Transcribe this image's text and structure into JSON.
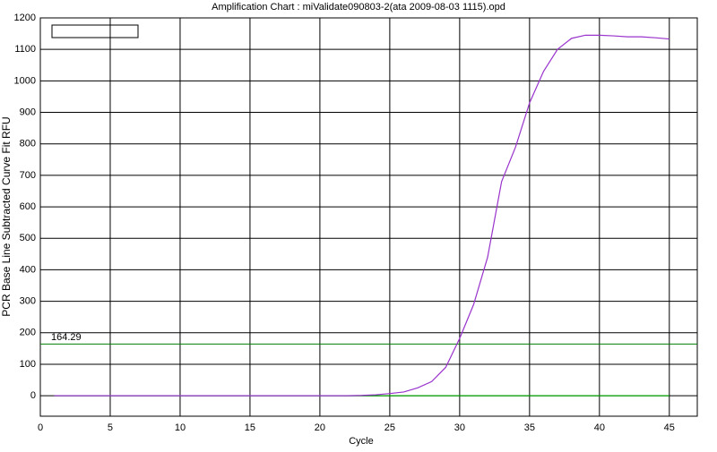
{
  "chart_data": {
    "type": "line",
    "title": "Amplification Chart : miValidate090803-2(ata 2009-08-03 1115).opd",
    "x_label": "Cycle",
    "y_label": "PCR Base Line Subtracted Curve Fit RFU",
    "x": [
      1,
      2,
      3,
      4,
      5,
      6,
      7,
      8,
      9,
      10,
      11,
      12,
      13,
      14,
      15,
      16,
      17,
      18,
      19,
      20,
      21,
      22,
      23,
      24,
      25,
      26,
      27,
      28,
      29,
      30,
      31,
      32,
      33,
      34,
      35,
      36,
      37,
      38,
      39,
      40,
      41,
      42,
      43,
      44,
      45
    ],
    "series": [
      {
        "color": "#9933cc",
        "values": [
          0,
          0,
          0,
          0,
          0,
          0,
          0,
          0,
          0,
          0,
          0,
          0,
          0,
          0,
          0,
          0,
          0,
          0,
          0,
          0,
          0,
          0,
          1,
          3,
          7,
          12,
          25,
          45,
          90,
          182,
          290,
          440,
          680,
          790,
          930,
          1030,
          1100,
          1135,
          1145,
          1145,
          1143,
          1140,
          1140,
          1137,
          1133
        ]
      },
      {
        "color": "#00a000",
        "values": [
          0,
          0,
          0,
          0,
          0,
          0,
          0,
          0,
          0,
          0,
          0,
          0,
          0,
          0,
          0,
          0,
          0,
          0,
          0,
          0,
          0,
          0,
          0,
          0,
          0,
          0,
          0,
          0,
          0,
          0,
          0,
          0,
          0,
          0,
          0,
          0,
          0,
          0,
          0,
          0,
          0,
          0,
          0,
          0,
          0
        ]
      }
    ],
    "threshold": 164.29,
    "threshold_color": "#008000",
    "xlim": [
      0,
      47
    ],
    "xticks": [
      0,
      5,
      10,
      15,
      20,
      25,
      30,
      35,
      40,
      45
    ],
    "ylim": [
      -65,
      1200
    ],
    "yticks": [
      0,
      100,
      200,
      300,
      400,
      500,
      600,
      700,
      800,
      900,
      1000,
      1100,
      1200
    ],
    "grid": true
  }
}
